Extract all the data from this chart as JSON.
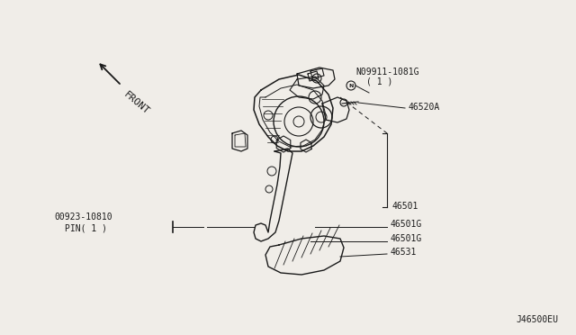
{
  "bg_color": "#f0ede8",
  "line_color": "#1a1a1a",
  "title_bottom_right": "J46500EU",
  "fig_width": 6.4,
  "fig_height": 3.72,
  "dpi": 100,
  "front_label": "FRONT",
  "part_labels": {
    "N09911": "N09911-1081G",
    "N09911_sub": "( 1 )",
    "p46520A": "46520A",
    "p46501": "46501",
    "p46501G_1": "46501G",
    "p46501G_2": "46501G",
    "p46531": "46531",
    "p00923": "00923-10810",
    "p00923_sub": "PIN( 1 )"
  }
}
